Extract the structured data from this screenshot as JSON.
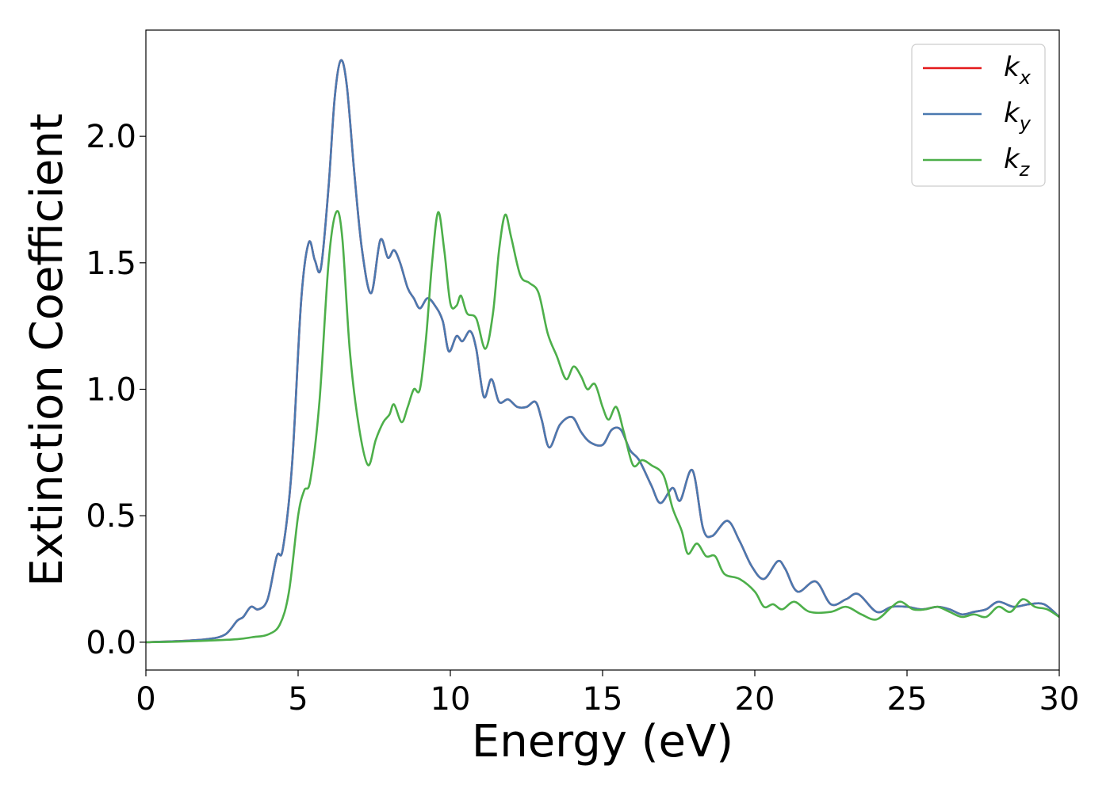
{
  "chart_data": {
    "type": "line",
    "title": "",
    "xlabel": "Energy (eV)",
    "ylabel": "Extinction Coefficient",
    "xlim": [
      0,
      30
    ],
    "ylim": [
      -0.11,
      2.42
    ],
    "xticks": [
      0,
      5,
      10,
      15,
      20,
      25,
      30
    ],
    "yticks": [
      0.0,
      0.5,
      1.0,
      1.5,
      2.0
    ],
    "xtick_labels": [
      "0",
      "5",
      "10",
      "15",
      "20",
      "25",
      "30"
    ],
    "ytick_labels": [
      "0.0",
      "0.5",
      "1.0",
      "1.5",
      "2.0"
    ],
    "grid": false,
    "legend_position": "top-right",
    "colors": {
      "kx": "#e41a1c",
      "ky": "#4a79b0",
      "kz": "#4daf4a"
    },
    "series": [
      {
        "key": "kx",
        "name": "k",
        "subscript": "x",
        "color": "#e41a1c",
        "points": [
          [
            0,
            0
          ],
          [
            1,
            0.004
          ],
          [
            2,
            0.012
          ],
          [
            2.6,
            0.03
          ],
          [
            3.0,
            0.085
          ],
          [
            3.2,
            0.1
          ],
          [
            3.45,
            0.14
          ],
          [
            3.7,
            0.13
          ],
          [
            4.0,
            0.17
          ],
          [
            4.3,
            0.34
          ],
          [
            4.5,
            0.37
          ],
          [
            4.8,
            0.7
          ],
          [
            5.1,
            1.35
          ],
          [
            5.35,
            1.58
          ],
          [
            5.55,
            1.51
          ],
          [
            5.75,
            1.48
          ],
          [
            6.0,
            1.8
          ],
          [
            6.2,
            2.15
          ],
          [
            6.4,
            2.3
          ],
          [
            6.6,
            2.2
          ],
          [
            6.85,
            1.85
          ],
          [
            7.1,
            1.55
          ],
          [
            7.4,
            1.38
          ],
          [
            7.7,
            1.59
          ],
          [
            7.95,
            1.52
          ],
          [
            8.15,
            1.55
          ],
          [
            8.35,
            1.5
          ],
          [
            8.6,
            1.4
          ],
          [
            8.8,
            1.36
          ],
          [
            9.0,
            1.32
          ],
          [
            9.25,
            1.36
          ],
          [
            9.5,
            1.33
          ],
          [
            9.75,
            1.27
          ],
          [
            9.95,
            1.15
          ],
          [
            10.2,
            1.21
          ],
          [
            10.4,
            1.19
          ],
          [
            10.65,
            1.23
          ],
          [
            10.85,
            1.16
          ],
          [
            11.1,
            0.97
          ],
          [
            11.35,
            1.04
          ],
          [
            11.6,
            0.95
          ],
          [
            11.9,
            0.96
          ],
          [
            12.2,
            0.93
          ],
          [
            12.5,
            0.93
          ],
          [
            12.8,
            0.95
          ],
          [
            13.0,
            0.88
          ],
          [
            13.25,
            0.77
          ],
          [
            13.6,
            0.86
          ],
          [
            14.0,
            0.89
          ],
          [
            14.3,
            0.83
          ],
          [
            14.6,
            0.79
          ],
          [
            15.0,
            0.78
          ],
          [
            15.3,
            0.84
          ],
          [
            15.6,
            0.84
          ],
          [
            15.9,
            0.76
          ],
          [
            16.2,
            0.72
          ],
          [
            16.6,
            0.62
          ],
          [
            16.9,
            0.55
          ],
          [
            17.3,
            0.61
          ],
          [
            17.55,
            0.56
          ],
          [
            17.95,
            0.68
          ],
          [
            18.3,
            0.45
          ],
          [
            18.6,
            0.42
          ],
          [
            19.1,
            0.48
          ],
          [
            19.5,
            0.4
          ],
          [
            19.9,
            0.3
          ],
          [
            20.3,
            0.25
          ],
          [
            20.75,
            0.32
          ],
          [
            21.0,
            0.29
          ],
          [
            21.4,
            0.2
          ],
          [
            22.0,
            0.24
          ],
          [
            22.5,
            0.15
          ],
          [
            23.0,
            0.17
          ],
          [
            23.4,
            0.19
          ],
          [
            24.0,
            0.12
          ],
          [
            24.5,
            0.14
          ],
          [
            25.0,
            0.14
          ],
          [
            25.5,
            0.13
          ],
          [
            26.0,
            0.14
          ],
          [
            26.4,
            0.13
          ],
          [
            26.8,
            0.11
          ],
          [
            27.2,
            0.12
          ],
          [
            27.6,
            0.13
          ],
          [
            28.0,
            0.16
          ],
          [
            28.5,
            0.14
          ],
          [
            29.0,
            0.15
          ],
          [
            29.5,
            0.15
          ],
          [
            30,
            0.1
          ]
        ]
      },
      {
        "key": "ky",
        "name": "k",
        "subscript": "y",
        "color": "#4a79b0",
        "points": [
          [
            0,
            0
          ],
          [
            1,
            0.004
          ],
          [
            2,
            0.012
          ],
          [
            2.6,
            0.03
          ],
          [
            3.0,
            0.085
          ],
          [
            3.2,
            0.1
          ],
          [
            3.45,
            0.14
          ],
          [
            3.7,
            0.13
          ],
          [
            4.0,
            0.17
          ],
          [
            4.3,
            0.34
          ],
          [
            4.5,
            0.37
          ],
          [
            4.8,
            0.7
          ],
          [
            5.1,
            1.35
          ],
          [
            5.35,
            1.58
          ],
          [
            5.55,
            1.51
          ],
          [
            5.75,
            1.48
          ],
          [
            6.0,
            1.8
          ],
          [
            6.2,
            2.15
          ],
          [
            6.4,
            2.3
          ],
          [
            6.6,
            2.2
          ],
          [
            6.85,
            1.85
          ],
          [
            7.1,
            1.55
          ],
          [
            7.4,
            1.38
          ],
          [
            7.7,
            1.59
          ],
          [
            7.95,
            1.52
          ],
          [
            8.15,
            1.55
          ],
          [
            8.35,
            1.5
          ],
          [
            8.6,
            1.4
          ],
          [
            8.8,
            1.36
          ],
          [
            9.0,
            1.32
          ],
          [
            9.25,
            1.36
          ],
          [
            9.5,
            1.33
          ],
          [
            9.75,
            1.27
          ],
          [
            9.95,
            1.15
          ],
          [
            10.2,
            1.21
          ],
          [
            10.4,
            1.19
          ],
          [
            10.65,
            1.23
          ],
          [
            10.85,
            1.16
          ],
          [
            11.1,
            0.97
          ],
          [
            11.35,
            1.04
          ],
          [
            11.6,
            0.95
          ],
          [
            11.9,
            0.96
          ],
          [
            12.2,
            0.93
          ],
          [
            12.5,
            0.93
          ],
          [
            12.8,
            0.95
          ],
          [
            13.0,
            0.88
          ],
          [
            13.25,
            0.77
          ],
          [
            13.6,
            0.86
          ],
          [
            14.0,
            0.89
          ],
          [
            14.3,
            0.83
          ],
          [
            14.6,
            0.79
          ],
          [
            15.0,
            0.78
          ],
          [
            15.3,
            0.84
          ],
          [
            15.6,
            0.84
          ],
          [
            15.9,
            0.76
          ],
          [
            16.2,
            0.72
          ],
          [
            16.6,
            0.62
          ],
          [
            16.9,
            0.55
          ],
          [
            17.3,
            0.61
          ],
          [
            17.55,
            0.56
          ],
          [
            17.95,
            0.68
          ],
          [
            18.3,
            0.45
          ],
          [
            18.6,
            0.42
          ],
          [
            19.1,
            0.48
          ],
          [
            19.5,
            0.4
          ],
          [
            19.9,
            0.3
          ],
          [
            20.3,
            0.25
          ],
          [
            20.75,
            0.32
          ],
          [
            21.0,
            0.29
          ],
          [
            21.4,
            0.2
          ],
          [
            22.0,
            0.24
          ],
          [
            22.5,
            0.15
          ],
          [
            23.0,
            0.17
          ],
          [
            23.4,
            0.19
          ],
          [
            24.0,
            0.12
          ],
          [
            24.5,
            0.14
          ],
          [
            25.0,
            0.14
          ],
          [
            25.5,
            0.13
          ],
          [
            26.0,
            0.14
          ],
          [
            26.4,
            0.13
          ],
          [
            26.8,
            0.11
          ],
          [
            27.2,
            0.12
          ],
          [
            27.6,
            0.13
          ],
          [
            28.0,
            0.16
          ],
          [
            28.5,
            0.14
          ],
          [
            29.0,
            0.15
          ],
          [
            29.5,
            0.15
          ],
          [
            30,
            0.1
          ]
        ]
      },
      {
        "key": "kz",
        "name": "k",
        "subscript": "z",
        "color": "#4daf4a",
        "points": [
          [
            0,
            0
          ],
          [
            1,
            0.002
          ],
          [
            2,
            0.006
          ],
          [
            3,
            0.012
          ],
          [
            3.5,
            0.02
          ],
          [
            4.0,
            0.03
          ],
          [
            4.4,
            0.07
          ],
          [
            4.7,
            0.2
          ],
          [
            5.0,
            0.5
          ],
          [
            5.2,
            0.6
          ],
          [
            5.4,
            0.64
          ],
          [
            5.7,
            0.95
          ],
          [
            6.0,
            1.5
          ],
          [
            6.25,
            1.7
          ],
          [
            6.45,
            1.6
          ],
          [
            6.7,
            1.15
          ],
          [
            7.0,
            0.85
          ],
          [
            7.3,
            0.7
          ],
          [
            7.55,
            0.8
          ],
          [
            7.8,
            0.87
          ],
          [
            8.0,
            0.9
          ],
          [
            8.15,
            0.94
          ],
          [
            8.4,
            0.87
          ],
          [
            8.6,
            0.93
          ],
          [
            8.8,
            1.0
          ],
          [
            9.0,
            1.0
          ],
          [
            9.2,
            1.2
          ],
          [
            9.4,
            1.5
          ],
          [
            9.6,
            1.7
          ],
          [
            9.8,
            1.55
          ],
          [
            10.0,
            1.34
          ],
          [
            10.2,
            1.33
          ],
          [
            10.35,
            1.37
          ],
          [
            10.55,
            1.3
          ],
          [
            10.85,
            1.28
          ],
          [
            11.15,
            1.16
          ],
          [
            11.4,
            1.3
          ],
          [
            11.6,
            1.55
          ],
          [
            11.8,
            1.69
          ],
          [
            12.0,
            1.6
          ],
          [
            12.3,
            1.45
          ],
          [
            12.6,
            1.42
          ],
          [
            12.9,
            1.38
          ],
          [
            13.2,
            1.22
          ],
          [
            13.5,
            1.13
          ],
          [
            13.8,
            1.04
          ],
          [
            14.05,
            1.09
          ],
          [
            14.3,
            1.05
          ],
          [
            14.5,
            1.0
          ],
          [
            14.75,
            1.02
          ],
          [
            15.0,
            0.93
          ],
          [
            15.2,
            0.88
          ],
          [
            15.45,
            0.93
          ],
          [
            15.7,
            0.83
          ],
          [
            16.0,
            0.7
          ],
          [
            16.3,
            0.72
          ],
          [
            16.6,
            0.7
          ],
          [
            17.0,
            0.66
          ],
          [
            17.3,
            0.53
          ],
          [
            17.6,
            0.44
          ],
          [
            17.8,
            0.35
          ],
          [
            18.1,
            0.39
          ],
          [
            18.4,
            0.34
          ],
          [
            18.7,
            0.34
          ],
          [
            19.0,
            0.27
          ],
          [
            19.5,
            0.25
          ],
          [
            20.0,
            0.2
          ],
          [
            20.3,
            0.14
          ],
          [
            20.6,
            0.15
          ],
          [
            20.9,
            0.13
          ],
          [
            21.3,
            0.16
          ],
          [
            21.8,
            0.12
          ],
          [
            22.5,
            0.12
          ],
          [
            23.0,
            0.14
          ],
          [
            23.5,
            0.11
          ],
          [
            24.0,
            0.09
          ],
          [
            24.5,
            0.14
          ],
          [
            24.8,
            0.16
          ],
          [
            25.2,
            0.13
          ],
          [
            25.6,
            0.13
          ],
          [
            26.0,
            0.14
          ],
          [
            26.4,
            0.12
          ],
          [
            26.8,
            0.1
          ],
          [
            27.2,
            0.11
          ],
          [
            27.6,
            0.1
          ],
          [
            28.0,
            0.14
          ],
          [
            28.4,
            0.12
          ],
          [
            28.8,
            0.17
          ],
          [
            29.2,
            0.14
          ],
          [
            29.6,
            0.13
          ],
          [
            30,
            0.1
          ]
        ]
      }
    ]
  }
}
